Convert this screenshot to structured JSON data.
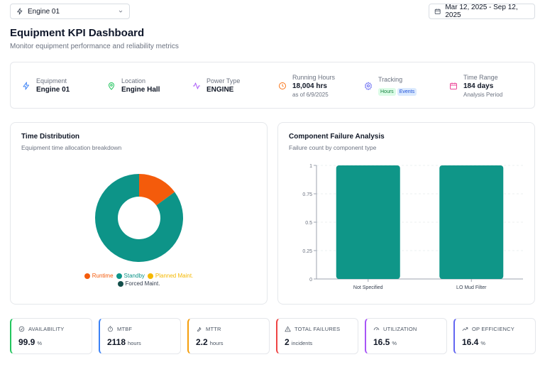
{
  "header": {
    "engine_select": "Engine 01",
    "date_range": "Mar 12, 2025 - Sep 12, 2025",
    "title": "Equipment KPI Dashboard",
    "subtitle": "Monitor equipment performance and reliability metrics"
  },
  "info": {
    "equipment": {
      "label": "Equipment",
      "value": "Engine 01"
    },
    "location": {
      "label": "Location",
      "value": "Engine Hall"
    },
    "power_type": {
      "label": "Power Type",
      "value": "ENGINE"
    },
    "running_hours": {
      "label": "Running Hours",
      "value": "18,004 hrs",
      "sub": "as of 6/9/2025"
    },
    "tracking": {
      "label": "Tracking",
      "badge1": "Hours",
      "badge2": "Events"
    },
    "time_range": {
      "label": "Time Range",
      "value": "184 days",
      "sub": "Analysis Period"
    }
  },
  "time_distribution": {
    "title": "Time Distribution",
    "subtitle": "Equipment time allocation breakdown",
    "chart_data": {
      "type": "pie",
      "slices": [
        {
          "name": "Runtime",
          "value": 15,
          "color": "#f45b0b"
        },
        {
          "name": "Standby",
          "value": 85,
          "color": "#0d9488"
        },
        {
          "name": "Planned Maint.",
          "value": 0,
          "color": "#f5b800"
        },
        {
          "name": "Forced Maint.",
          "value": 0,
          "color": "#134e4a"
        }
      ]
    }
  },
  "component_failure": {
    "title": "Component Failure Analysis",
    "subtitle": "Failure count by component type",
    "chart_data": {
      "type": "bar",
      "categories": [
        "Not Specified",
        "LO Mud Filter"
      ],
      "values": [
        1,
        1
      ],
      "ylim": [
        0,
        1
      ],
      "ticks": [
        "0",
        "0.25",
        "0.5",
        "0.75",
        "1"
      ],
      "color": "#0f9688"
    }
  },
  "kpis": [
    {
      "label": "AVAILABILITY",
      "value": "99.9",
      "unit": "%",
      "color": "#22c55e",
      "icon": "check-circle-icon"
    },
    {
      "label": "MTBF",
      "value": "2118",
      "unit": "hours",
      "color": "#3b82f6",
      "icon": "timer-icon"
    },
    {
      "label": "MTTR",
      "value": "2.2",
      "unit": "hours",
      "color": "#f59e0b",
      "icon": "wrench-icon"
    },
    {
      "label": "TOTAL FAILURES",
      "value": "2",
      "unit": "incidents",
      "color": "#ef4444",
      "icon": "warning-icon"
    },
    {
      "label": "UTILIZATION",
      "value": "16.5",
      "unit": "%",
      "color": "#a855f7",
      "icon": "gauge-icon"
    },
    {
      "label": "OP EFFICIENCY",
      "value": "16.4",
      "unit": "%",
      "color": "#6366f1",
      "icon": "trending-up-icon"
    }
  ]
}
